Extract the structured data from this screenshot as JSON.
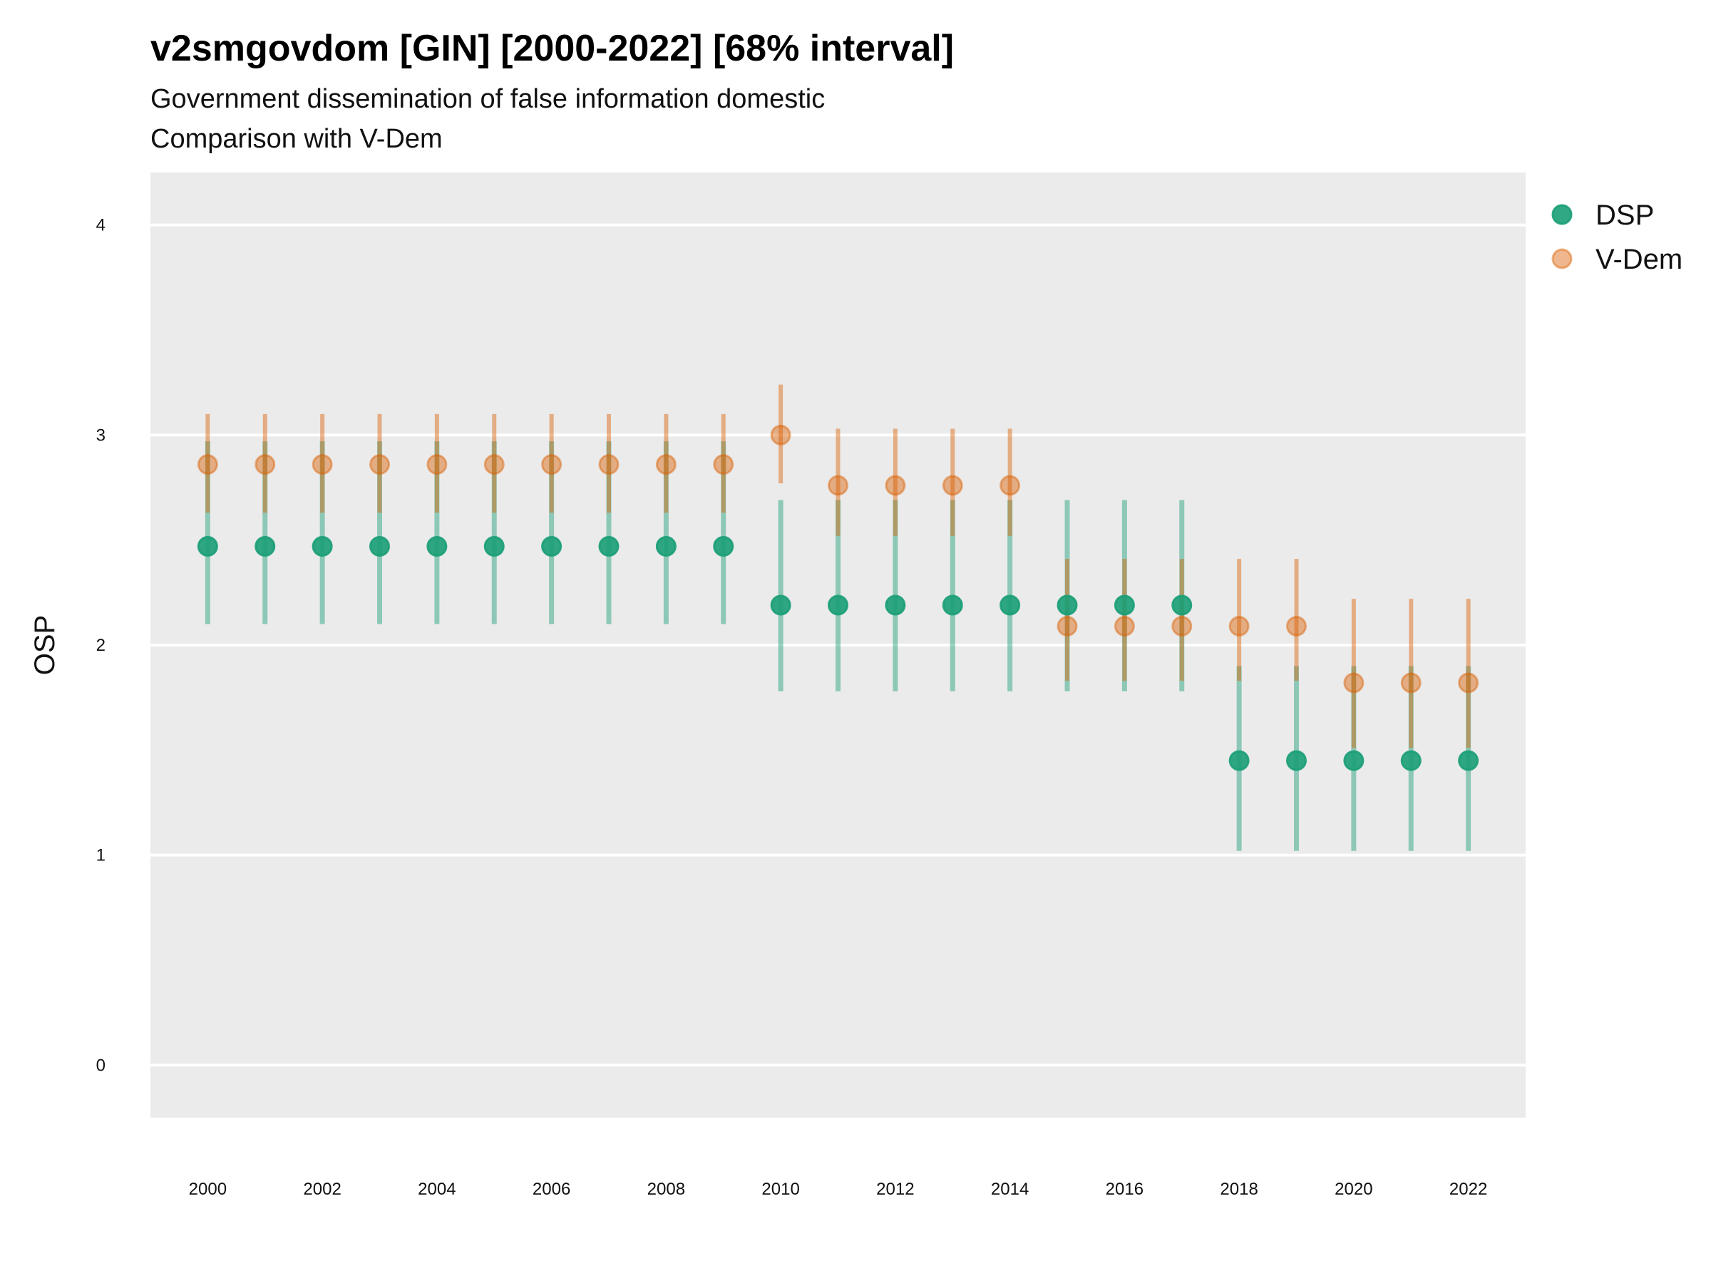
{
  "chart_data": {
    "type": "scatter",
    "title": "v2smgovdom [GIN] [2000-2022] [68% interval]",
    "subtitle": "Government dissemination of false information domestic",
    "caption": "Comparison with V-Dem",
    "ylabel": "OSP",
    "xlabel": "",
    "x_ticks": [
      2000,
      2002,
      2004,
      2006,
      2008,
      2010,
      2012,
      2014,
      2016,
      2018,
      2020,
      2022
    ],
    "y_ticks": [
      0,
      1,
      2,
      3,
      4
    ],
    "xlim": [
      1999.0,
      2023.0
    ],
    "ylim": [
      -0.25,
      4.25
    ],
    "grid": true,
    "legend_position": "right",
    "series": [
      {
        "name": "DSP",
        "color": "#1b9e77",
        "x": [
          2000,
          2001,
          2002,
          2003,
          2004,
          2005,
          2006,
          2007,
          2008,
          2009,
          2010,
          2011,
          2012,
          2013,
          2014,
          2015,
          2016,
          2017,
          2018,
          2019,
          2020,
          2021,
          2022
        ],
        "y": [
          2.47,
          2.47,
          2.47,
          2.47,
          2.47,
          2.47,
          2.47,
          2.47,
          2.47,
          2.47,
          2.19,
          2.19,
          2.19,
          2.19,
          2.19,
          2.19,
          2.19,
          2.19,
          1.45,
          1.45,
          1.45,
          1.45,
          1.45
        ],
        "low": [
          2.1,
          2.1,
          2.1,
          2.1,
          2.1,
          2.1,
          2.1,
          2.1,
          2.1,
          2.1,
          1.78,
          1.78,
          1.78,
          1.78,
          1.78,
          1.78,
          1.78,
          1.78,
          1.02,
          1.02,
          1.02,
          1.02,
          1.02
        ],
        "high": [
          2.97,
          2.97,
          2.97,
          2.97,
          2.97,
          2.97,
          2.97,
          2.97,
          2.97,
          2.97,
          2.69,
          2.69,
          2.69,
          2.69,
          2.69,
          2.69,
          2.69,
          2.69,
          1.9,
          1.9,
          1.9,
          1.9,
          1.9
        ]
      },
      {
        "name": "V-Dem",
        "color": "#d95f02",
        "x": [
          2000,
          2001,
          2002,
          2003,
          2004,
          2005,
          2006,
          2007,
          2008,
          2009,
          2010,
          2011,
          2012,
          2013,
          2014,
          2015,
          2016,
          2017,
          2018,
          2019,
          2020,
          2021,
          2022
        ],
        "y": [
          2.86,
          2.86,
          2.86,
          2.86,
          2.86,
          2.86,
          2.86,
          2.86,
          2.86,
          2.86,
          3.0,
          2.76,
          2.76,
          2.76,
          2.76,
          2.09,
          2.09,
          2.09,
          2.09,
          2.09,
          1.82,
          1.82,
          1.82
        ],
        "low": [
          2.63,
          2.63,
          2.63,
          2.63,
          2.63,
          2.63,
          2.63,
          2.63,
          2.63,
          2.63,
          2.77,
          2.52,
          2.52,
          2.52,
          2.52,
          1.83,
          1.83,
          1.83,
          1.83,
          1.83,
          1.51,
          1.51,
          1.51
        ],
        "high": [
          3.1,
          3.1,
          3.1,
          3.1,
          3.1,
          3.1,
          3.1,
          3.1,
          3.1,
          3.1,
          3.24,
          3.03,
          3.03,
          3.03,
          3.03,
          2.41,
          2.41,
          2.41,
          2.41,
          2.41,
          2.22,
          2.22,
          2.22
        ]
      }
    ]
  }
}
